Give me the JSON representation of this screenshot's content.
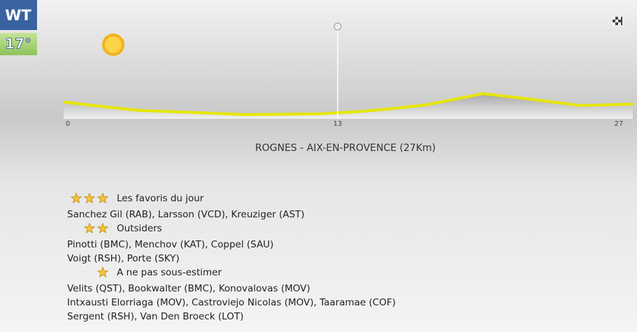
{
  "badge": {
    "label": "WT",
    "temperature": "17°"
  },
  "chart_data": {
    "type": "area",
    "x": [
      0,
      2,
      3.6,
      7,
      8.6,
      12,
      13.9,
      15.4,
      17.2,
      19.9,
      21.9,
      24.5,
      27
    ],
    "values": [
      24,
      17,
      12,
      8,
      6,
      7,
      10,
      14,
      20,
      36,
      29,
      19,
      21
    ],
    "xlim": [
      0,
      27
    ],
    "xticks": [
      0,
      13,
      27
    ],
    "ylim": [
      0,
      40
    ],
    "color": "#e6e600",
    "title": "ROGNES - AIX-EN-PROVENCE (27Km)"
  },
  "sections": [
    {
      "stars": 3,
      "title": "Les favoris du jour",
      "lines": [
        "Sanchez Gil (RAB), Larsson (VCD), Kreuziger (AST)"
      ]
    },
    {
      "stars": 2,
      "title": "Outsiders",
      "lines": [
        "Pinotti (BMC), Menchov (KAT), Coppel (SAU)",
        "Voigt (RSH), Porte (SKY)"
      ]
    },
    {
      "stars": 1,
      "title": "A ne pas sous-estimer",
      "lines": [
        "Velits (QST), Bookwalter (BMC), Konovalovas (MOV)",
        "Intxausti Elorriaga (MOV), Castroviejo Nicolas (MOV), Taaramae (COF)",
        "Sergent (RSH), Van Den Broeck (LOT)"
      ]
    }
  ]
}
